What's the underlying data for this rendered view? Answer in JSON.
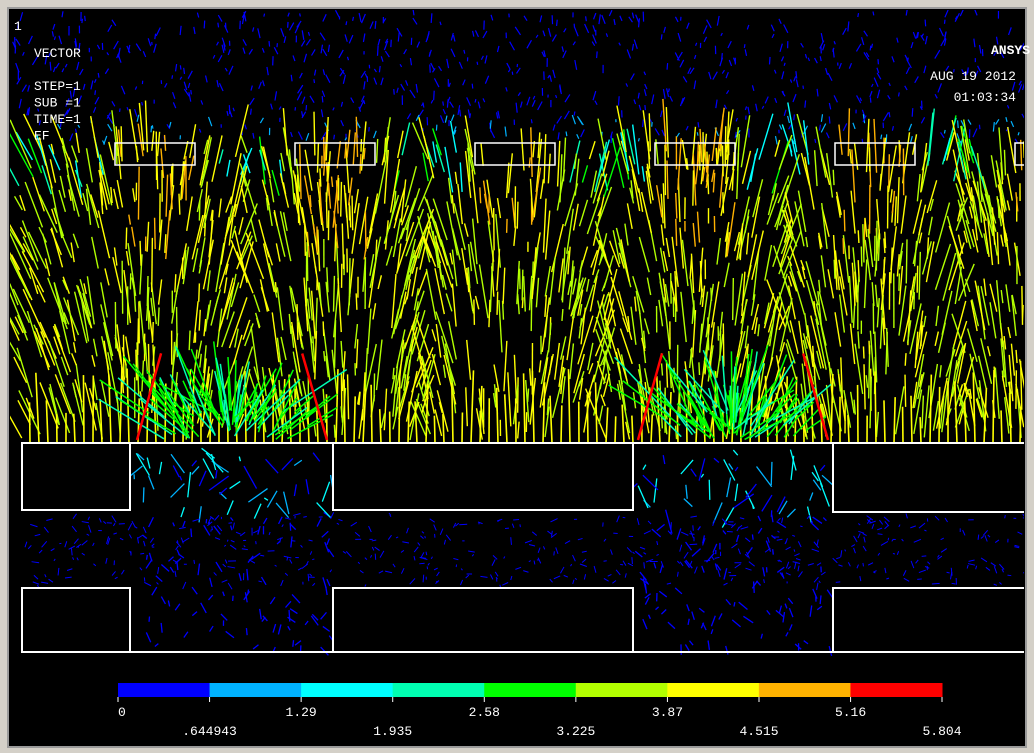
{
  "window_number": "1",
  "info": {
    "lines": [
      "VECTOR",
      "STEP=1",
      "SUB =1",
      "TIME=1",
      "EF"
    ]
  },
  "logo": "ANSYS",
  "date": "AUG 19 2012",
  "time": "01:03:34",
  "colorbar": {
    "colors": [
      "#0000ff",
      "#00b2ff",
      "#00ffff",
      "#00ffb2",
      "#00ff00",
      "#b2ff00",
      "#ffff00",
      "#ffb200",
      "#ff0000"
    ],
    "ticks": [
      0,
      {
        "value": 0.644943,
        "label": ".644943"
      },
      1.29,
      1.935,
      2.58,
      3.225,
      3.87,
      4.515,
      5.16,
      5.804
    ]
  }
}
